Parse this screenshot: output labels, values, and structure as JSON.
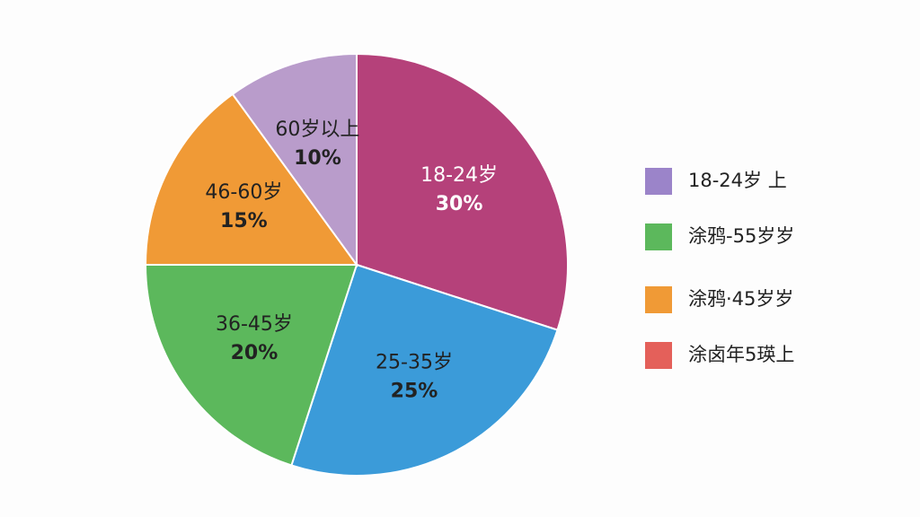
{
  "chart_data": {
    "type": "pie",
    "categories": [
      "18-24岁",
      "25-35岁",
      "36-45岁",
      "46-60岁",
      "60岁以上"
    ],
    "values": [
      30,
      25,
      20,
      15,
      10
    ],
    "value_labels": [
      "30%",
      "25%",
      "20%",
      "15%",
      "10%"
    ],
    "colors": [
      "#b5417a",
      "#3b9bd9",
      "#5cb85c",
      "#f09a36",
      "#b99ccb"
    ],
    "label_colors": [
      "#ffffff",
      "#222222",
      "#222222",
      "#222222",
      "#222222"
    ],
    "legend": [
      {
        "label": "18-24岁 上",
        "color": "#9b84c9"
      },
      {
        "label": "涂鸦-55岁岁",
        "color": "#5cb85c"
      },
      {
        "label": "涂鸦·45岁岁",
        "color": "#f09a36"
      },
      {
        "label": "涂卤年5瑛上",
        "color": "#e4605a"
      }
    ]
  }
}
